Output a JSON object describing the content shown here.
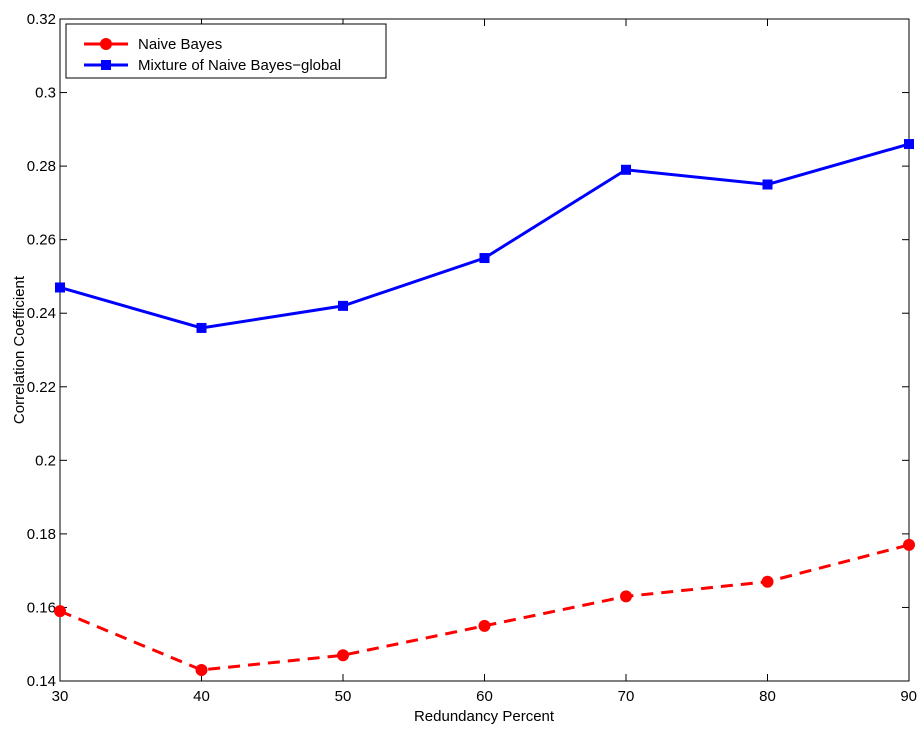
{
  "chart_data": {
    "type": "line",
    "title": "",
    "xlabel": "Redundancy Percent",
    "ylabel": "Correlation Coefficient",
    "xlim": [
      30,
      90
    ],
    "ylim": [
      0.14,
      0.32
    ],
    "x_ticks": [
      30,
      40,
      50,
      60,
      70,
      80,
      90
    ],
    "y_ticks": [
      0.14,
      0.16,
      0.18,
      0.2,
      0.22,
      0.24,
      0.26,
      0.28,
      0.3,
      0.32
    ],
    "x_tick_labels": [
      "30",
      "40",
      "50",
      "60",
      "70",
      "80",
      "90"
    ],
    "y_tick_labels": [
      "0.14",
      "0.16",
      "0.18",
      "0.2",
      "0.22",
      "0.24",
      "0.26",
      "0.28",
      "0.3",
      "0.32"
    ],
    "grid": false,
    "legend_position": "top-left",
    "x": [
      30,
      40,
      50,
      60,
      70,
      80,
      90
    ],
    "series": [
      {
        "name": "Naive Bayes",
        "values": [
          0.159,
          0.143,
          0.147,
          0.155,
          0.163,
          0.167,
          0.177
        ],
        "color": "#ff0000",
        "line_style": "dashed",
        "marker": "circle"
      },
      {
        "name": "Mixture of Naive Bayes−global",
        "values": [
          0.247,
          0.236,
          0.242,
          0.255,
          0.279,
          0.275,
          0.286
        ],
        "color": "#0000ff",
        "line_style": "solid",
        "marker": "square"
      }
    ]
  }
}
